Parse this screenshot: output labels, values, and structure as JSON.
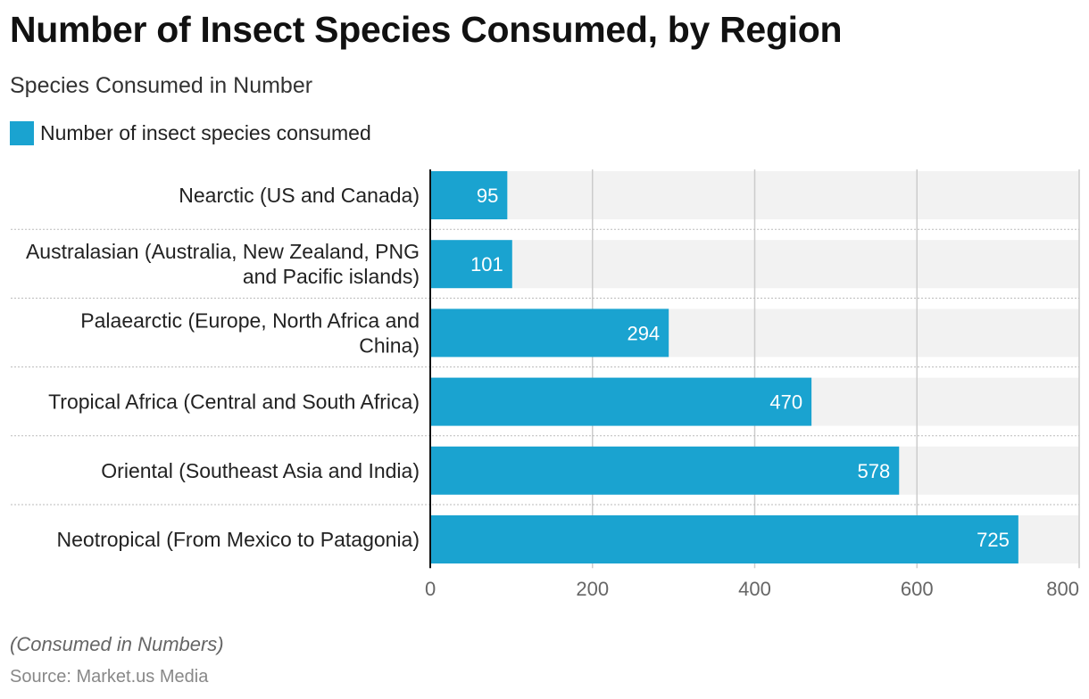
{
  "title": "Number of Insect Species Consumed, by Region",
  "subtitle": "Species Consumed in Number",
  "note": "(Consumed in Numbers)",
  "source": "Source: Market.us Media",
  "colors": {
    "bar": "#1aa3d0",
    "band": "#f2f2f2",
    "grid": "#cccccc",
    "axis": "#111111",
    "separator": "#bbbbbb",
    "bar_label": "#ffffff",
    "tick_label": "#666666",
    "category_label": "#222222"
  },
  "chart_data": {
    "type": "bar",
    "orientation": "horizontal",
    "categories": [
      [
        "Nearctic (US and Canada)"
      ],
      [
        "Australasian (Australia, New Zealand, PNG",
        "and Pacific islands)"
      ],
      [
        "Palaearctic (Europe, North Africa and",
        "China)"
      ],
      [
        "Tropical Africa (Central and South Africa)"
      ],
      [
        "Oriental (Southeast Asia and India)"
      ],
      [
        "Neotropical (From Mexico to Patagonia)"
      ]
    ],
    "series": [
      {
        "name": "Number of insect species consumed",
        "values": [
          95,
          101,
          294,
          470,
          578,
          725
        ]
      }
    ],
    "xlim": [
      0,
      800
    ],
    "xticks": [
      0,
      200,
      400,
      600,
      800
    ],
    "grid": true,
    "data_labels": true,
    "legend_position": "top-left"
  }
}
